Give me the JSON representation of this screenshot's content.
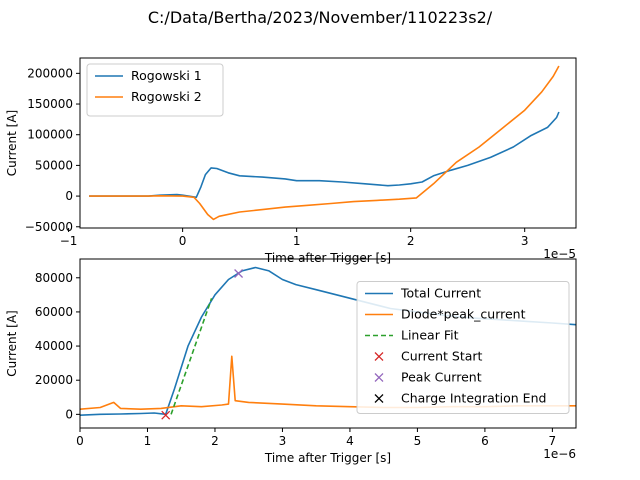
{
  "figure": {
    "title": "C:/Data/Bertha/2023/November/110223s2/"
  },
  "chart_data": [
    {
      "type": "line",
      "xlabel": "Time after Trigger [s]",
      "ylabel": "Current [A]",
      "x_offset_label": "1e−5",
      "xlim": [
        -0.9,
        3.45
      ],
      "ylim": [
        -52000,
        225000
      ],
      "xticks": [
        -1,
        0,
        1,
        2,
        3
      ],
      "yticks": [
        -50000,
        0,
        50000,
        100000,
        150000,
        200000
      ],
      "legend": "upper-left",
      "series": [
        {
          "name": "Rogowski 1",
          "color": "#1f77b4",
          "points": [
            [
              -0.82,
              0
            ],
            [
              -0.3,
              0
            ],
            [
              -0.2,
              1500
            ],
            [
              -0.05,
              2500
            ],
            [
              0,
              1500
            ],
            [
              0.05,
              0
            ],
            [
              0.12,
              -2000
            ],
            [
              0.16,
              15000
            ],
            [
              0.2,
              35000
            ],
            [
              0.25,
              46000
            ],
            [
              0.3,
              45000
            ],
            [
              0.4,
              38000
            ],
            [
              0.5,
              33000
            ],
            [
              0.7,
              31000
            ],
            [
              0.9,
              28000
            ],
            [
              1.0,
              25000
            ],
            [
              1.2,
              25000
            ],
            [
              1.4,
              23000
            ],
            [
              1.6,
              20000
            ],
            [
              1.8,
              17000
            ],
            [
              1.9,
              18000
            ],
            [
              2.0,
              20000
            ],
            [
              2.1,
              23000
            ],
            [
              2.2,
              33000
            ],
            [
              2.35,
              42000
            ],
            [
              2.5,
              50000
            ],
            [
              2.7,
              63000
            ],
            [
              2.9,
              80000
            ],
            [
              3.05,
              98000
            ],
            [
              3.2,
              112000
            ],
            [
              3.28,
              128000
            ],
            [
              3.3,
              137000
            ]
          ]
        },
        {
          "name": "Rogowski 2",
          "color": "#ff7f0e",
          "points": [
            [
              -0.82,
              0
            ],
            [
              -0.3,
              0
            ],
            [
              -0.2,
              500
            ],
            [
              0,
              0
            ],
            [
              0.1,
              -2000
            ],
            [
              0.15,
              -12000
            ],
            [
              0.22,
              -30000
            ],
            [
              0.27,
              -38000
            ],
            [
              0.32,
              -33000
            ],
            [
              0.5,
              -26000
            ],
            [
              0.7,
              -22000
            ],
            [
              0.9,
              -18000
            ],
            [
              1.1,
              -15000
            ],
            [
              1.3,
              -12000
            ],
            [
              1.5,
              -9000
            ],
            [
              1.7,
              -7000
            ],
            [
              1.9,
              -5000
            ],
            [
              2.05,
              -3000
            ],
            [
              2.2,
              20000
            ],
            [
              2.4,
              55000
            ],
            [
              2.6,
              80000
            ],
            [
              2.8,
              110000
            ],
            [
              3.0,
              140000
            ],
            [
              3.15,
              170000
            ],
            [
              3.25,
              195000
            ],
            [
              3.3,
              212000
            ]
          ]
        }
      ]
    },
    {
      "type": "line",
      "xlabel": "Time after Trigger [s]",
      "ylabel": "Current [A]",
      "x_offset_label": "1e−6",
      "xlim": [
        0,
        7.35
      ],
      "ylim": [
        -8000,
        91000
      ],
      "xticks": [
        0,
        1,
        2,
        3,
        4,
        5,
        6,
        7
      ],
      "yticks": [
        0,
        20000,
        40000,
        60000,
        80000
      ],
      "legend": "center-right",
      "series": [
        {
          "name": "Total Current",
          "color": "#1f77b4",
          "points": [
            [
              0,
              -500
            ],
            [
              0.3,
              0
            ],
            [
              0.6,
              200
            ],
            [
              0.9,
              500
            ],
            [
              1.1,
              800
            ],
            [
              1.27,
              0
            ],
            [
              1.4,
              15000
            ],
            [
              1.6,
              40000
            ],
            [
              1.8,
              57000
            ],
            [
              2.0,
              70000
            ],
            [
              2.2,
              79000
            ],
            [
              2.4,
              84000
            ],
            [
              2.6,
              86000
            ],
            [
              2.8,
              84000
            ],
            [
              3.0,
              79000
            ],
            [
              3.2,
              76000
            ],
            [
              3.5,
              73000
            ],
            [
              3.8,
              70000
            ],
            [
              4.2,
              66000
            ],
            [
              4.6,
              62000
            ],
            [
              5.0,
              60000
            ],
            [
              5.4,
              58000
            ],
            [
              5.8,
              56500
            ],
            [
              6.2,
              55500
            ],
            [
              6.6,
              54500
            ],
            [
              7.0,
              53500
            ],
            [
              7.35,
              52500
            ]
          ]
        },
        {
          "name": "Diode*peak_current",
          "color": "#ff7f0e",
          "points": [
            [
              0,
              3000
            ],
            [
              0.3,
              4000
            ],
            [
              0.5,
              7000
            ],
            [
              0.6,
              3500
            ],
            [
              0.9,
              3000
            ],
            [
              1.2,
              3500
            ],
            [
              1.5,
              5000
            ],
            [
              1.8,
              4500
            ],
            [
              2.1,
              5500
            ],
            [
              2.2,
              6000
            ],
            [
              2.25,
              34000
            ],
            [
              2.3,
              8000
            ],
            [
              2.5,
              7000
            ],
            [
              3.0,
              6000
            ],
            [
              3.5,
              5000
            ],
            [
              4.0,
              4500
            ],
            [
              4.5,
              4000
            ],
            [
              5.0,
              4000
            ],
            [
              5.5,
              4500
            ],
            [
              6.0,
              4500
            ],
            [
              6.5,
              5000
            ],
            [
              7.0,
              5000
            ],
            [
              7.35,
              5000
            ]
          ]
        },
        {
          "name": "Linear Fit",
          "color": "#2ca02c",
          "dashed": true,
          "points": [
            [
              1.35,
              0
            ],
            [
              1.95,
              68000
            ]
          ]
        },
        {
          "name": "Current Start",
          "color": "#d62728",
          "marker": "x",
          "points": [
            [
              1.27,
              -500
            ]
          ]
        },
        {
          "name": "Peak Current",
          "color": "#9467bd",
          "marker": "x",
          "points": [
            [
              2.35,
              82500
            ]
          ]
        },
        {
          "name": "Charge Integration End",
          "color": "#000000",
          "marker": "x",
          "points": []
        }
      ]
    }
  ]
}
